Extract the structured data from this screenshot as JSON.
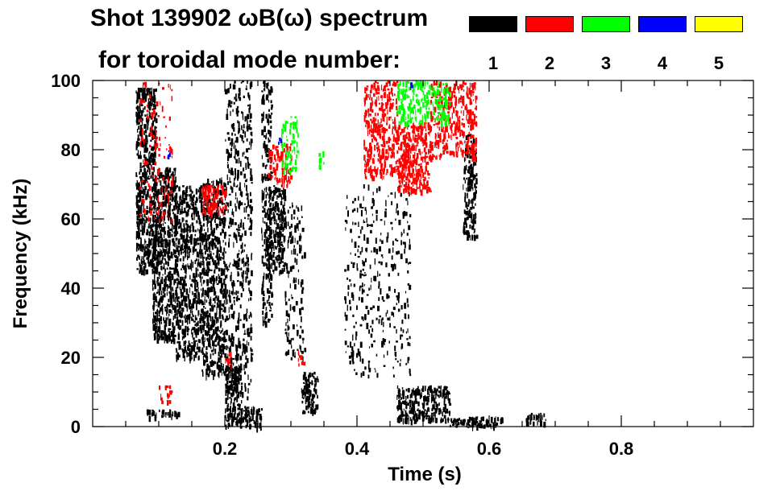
{
  "chart_data": {
    "type": "heatmap",
    "title": "Shot 139902 ωB(ω) spectrum",
    "subtitle": "for toroidal mode number:",
    "xlabel": "Time (s)",
    "ylabel": "Frequency (kHz)",
    "xlim": [
      0.0,
      1.0
    ],
    "ylim": [
      0,
      100
    ],
    "xticks": [
      0.2,
      0.4,
      0.6,
      0.8
    ],
    "xtick_labels": [
      "0.2",
      "0.4",
      "0.6",
      "0.8"
    ],
    "yticks": [
      0,
      20,
      40,
      60,
      80,
      100
    ],
    "ytick_labels": [
      "0",
      "20",
      "40",
      "60",
      "80",
      "100"
    ],
    "legend_placement": "top-right",
    "legend": [
      {
        "label": "1",
        "color": "#000000"
      },
      {
        "label": "2",
        "color": "#ff0000"
      },
      {
        "label": "3",
        "color": "#00ff00"
      },
      {
        "label": "4",
        "color": "#0000ff"
      },
      {
        "label": "5",
        "color": "#ffff00"
      }
    ],
    "series": [
      {
        "name": "1",
        "color": "#000000",
        "regions": [
          {
            "t": [
              0.065,
              0.095
            ],
            "f": [
              45,
              98
            ],
            "density": 0.9
          },
          {
            "t": [
              0.09,
              0.125
            ],
            "f": [
              25,
              75
            ],
            "density": 0.85
          },
          {
            "t": [
              0.125,
              0.165
            ],
            "f": [
              20,
              70
            ],
            "density": 0.7
          },
          {
            "t": [
              0.165,
              0.2
            ],
            "f": [
              15,
              72
            ],
            "density": 0.75
          },
          {
            "t": [
              0.2,
              0.24
            ],
            "f": [
              8,
              100
            ],
            "density": 0.35
          },
          {
            "t": [
              0.2,
              0.225
            ],
            "f": [
              0,
              18
            ],
            "density": 0.9
          },
          {
            "t": [
              0.22,
              0.255
            ],
            "f": [
              0,
              6
            ],
            "density": 0.85
          },
          {
            "t": [
              0.255,
              0.27
            ],
            "f": [
              30,
              100
            ],
            "density": 0.6
          },
          {
            "t": [
              0.265,
              0.29
            ],
            "f": [
              45,
              70
            ],
            "density": 0.85
          },
          {
            "t": [
              0.29,
              0.32
            ],
            "f": [
              20,
              65
            ],
            "density": 0.25
          },
          {
            "t": [
              0.315,
              0.34
            ],
            "f": [
              4,
              16
            ],
            "density": 0.85
          },
          {
            "t": [
              0.38,
              0.48
            ],
            "f": [
              15,
              70
            ],
            "density": 0.15
          },
          {
            "t": [
              0.46,
              0.54
            ],
            "f": [
              2,
              12
            ],
            "density": 0.9
          },
          {
            "t": [
              0.54,
              0.62
            ],
            "f": [
              0,
              3
            ],
            "density": 0.85
          },
          {
            "t": [
              0.56,
              0.58
            ],
            "f": [
              55,
              85
            ],
            "density": 0.7
          },
          {
            "t": [
              0.08,
              0.13
            ],
            "f": [
              3,
              5
            ],
            "density": 0.8
          },
          {
            "t": [
              0.655,
              0.685
            ],
            "f": [
              1,
              4
            ],
            "density": 0.8
          }
        ]
      },
      {
        "name": "2",
        "color": "#ff0000",
        "regions": [
          {
            "t": [
              0.07,
              0.12
            ],
            "f": [
              60,
              100
            ],
            "density": 0.15
          },
          {
            "t": [
              0.165,
              0.2
            ],
            "f": [
              62,
              70
            ],
            "density": 0.8
          },
          {
            "t": [
              0.265,
              0.3
            ],
            "f": [
              70,
              82
            ],
            "density": 0.5
          },
          {
            "t": [
              0.41,
              0.46
            ],
            "f": [
              72,
              100
            ],
            "density": 0.6
          },
          {
            "t": [
              0.46,
              0.51
            ],
            "f": [
              68,
              88
            ],
            "density": 0.85
          },
          {
            "t": [
              0.51,
              0.58
            ],
            "f": [
              78,
              100
            ],
            "density": 0.55
          },
          {
            "t": [
              0.1,
              0.12
            ],
            "f": [
              6,
              12
            ],
            "density": 0.3
          },
          {
            "t": [
              0.31,
              0.32
            ],
            "f": [
              18,
              22
            ],
            "density": 0.6
          },
          {
            "t": [
              0.2,
              0.21
            ],
            "f": [
              18,
              22
            ],
            "density": 0.5
          }
        ]
      },
      {
        "name": "3",
        "color": "#00ff00",
        "regions": [
          {
            "t": [
              0.285,
              0.31
            ],
            "f": [
              74,
              90
            ],
            "density": 0.4
          },
          {
            "t": [
              0.34,
              0.35
            ],
            "f": [
              75,
              80
            ],
            "density": 0.4
          },
          {
            "t": [
              0.46,
              0.54
            ],
            "f": [
              88,
              100
            ],
            "density": 0.6
          }
        ]
      },
      {
        "name": "4",
        "color": "#0000ff",
        "regions": [
          {
            "t": [
              0.112,
              0.116
            ],
            "f": [
              78,
              80
            ],
            "density": 0.9
          },
          {
            "t": [
              0.28,
              0.284
            ],
            "f": [
              82,
              84
            ],
            "density": 0.9
          },
          {
            "t": [
              0.48,
              0.484
            ],
            "f": [
              98,
              100
            ],
            "density": 0.9
          }
        ]
      },
      {
        "name": "5",
        "color": "#ffff00",
        "regions": []
      }
    ]
  }
}
